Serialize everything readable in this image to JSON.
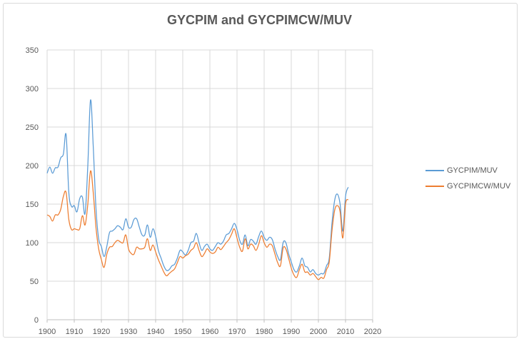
{
  "chart_data": {
    "type": "line",
    "title": "GYCPIM and GYCPIMCW/MUV",
    "xlabel": "",
    "ylabel": "",
    "xlim": [
      1900,
      2020
    ],
    "ylim": [
      0,
      350
    ],
    "x_ticks": [
      "1900",
      "1910",
      "1920",
      "1930",
      "1940",
      "1950",
      "1960",
      "1970",
      "1980",
      "1990",
      "2000",
      "2010",
      "2020"
    ],
    "y_ticks": [
      "0",
      "50",
      "100",
      "150",
      "200",
      "250",
      "300",
      "350"
    ],
    "grid": true,
    "legend_position": "right",
    "x": [
      1900,
      1901,
      1902,
      1903,
      1904,
      1905,
      1906,
      1907,
      1908,
      1909,
      1910,
      1911,
      1912,
      1913,
      1914,
      1915,
      1916,
      1917,
      1918,
      1919,
      1920,
      1921,
      1922,
      1923,
      1924,
      1925,
      1926,
      1927,
      1928,
      1929,
      1930,
      1931,
      1932,
      1933,
      1934,
      1935,
      1936,
      1937,
      1938,
      1939,
      1940,
      1941,
      1942,
      1943,
      1944,
      1945,
      1946,
      1947,
      1948,
      1949,
      1950,
      1951,
      1952,
      1953,
      1954,
      1955,
      1956,
      1957,
      1958,
      1959,
      1960,
      1961,
      1962,
      1963,
      1964,
      1965,
      1966,
      1967,
      1968,
      1969,
      1970,
      1971,
      1972,
      1973,
      1974,
      1975,
      1976,
      1977,
      1978,
      1979,
      1980,
      1981,
      1982,
      1983,
      1984,
      1985,
      1986,
      1987,
      1988,
      1989,
      1990,
      1991,
      1992,
      1993,
      1994,
      1995,
      1996,
      1997,
      1998,
      1999,
      2000,
      2001,
      2002,
      2003,
      2004,
      2005,
      2006,
      2007,
      2008,
      2009,
      2010,
      2011
    ],
    "series": [
      {
        "name": "GYCPIM/MUV",
        "color": "#5b9bd5",
        "values": [
          190,
          198,
          190,
          197,
          198,
          210,
          215,
          240,
          165,
          147,
          148,
          140,
          157,
          159,
          138,
          200,
          285,
          225,
          145,
          105,
          95,
          82,
          95,
          113,
          115,
          118,
          122,
          120,
          117,
          131,
          120,
          120,
          130,
          131,
          120,
          110,
          110,
          123,
          107,
          118,
          108,
          90,
          80,
          70,
          64,
          65,
          70,
          72,
          80,
          90,
          88,
          84,
          90,
          100,
          102,
          112,
          100,
          90,
          95,
          98,
          92,
          90,
          95,
          100,
          98,
          102,
          110,
          112,
          118,
          125,
          117,
          103,
          98,
          110,
          96,
          104,
          102,
          98,
          108,
          115,
          107,
          103,
          107,
          104,
          92,
          82,
          78,
          100,
          100,
          86,
          75,
          65,
          62,
          70,
          80,
          70,
          68,
          62,
          65,
          60,
          58,
          60,
          60,
          70,
          80,
          125,
          155,
          163,
          150,
          115,
          160,
          172
        ]
      },
      {
        "name": "GYCPIMCW/MUV",
        "color": "#ed7d31",
        "values": [
          136,
          134,
          128,
          136,
          136,
          143,
          160,
          165,
          130,
          117,
          118,
          117,
          118,
          135,
          123,
          150,
          193,
          165,
          120,
          92,
          78,
          68,
          85,
          94,
          95,
          100,
          103,
          101,
          100,
          110,
          92,
          86,
          85,
          94,
          92,
          92,
          94,
          105,
          90,
          97,
          88,
          78,
          70,
          62,
          57,
          60,
          63,
          66,
          74,
          82,
          80,
          83,
          85,
          90,
          93,
          100,
          90,
          82,
          86,
          92,
          88,
          86,
          88,
          94,
          91,
          95,
          100,
          104,
          111,
          118,
          106,
          94,
          89,
          105,
          92,
          98,
          96,
          90,
          98,
          109,
          100,
          94,
          98,
          96,
          85,
          74,
          70,
          93,
          92,
          80,
          67,
          58,
          55,
          65,
          72,
          62,
          62,
          58,
          60,
          56,
          52,
          55,
          54,
          65,
          75,
          115,
          142,
          148,
          140,
          106,
          150,
          156
        ]
      }
    ]
  }
}
